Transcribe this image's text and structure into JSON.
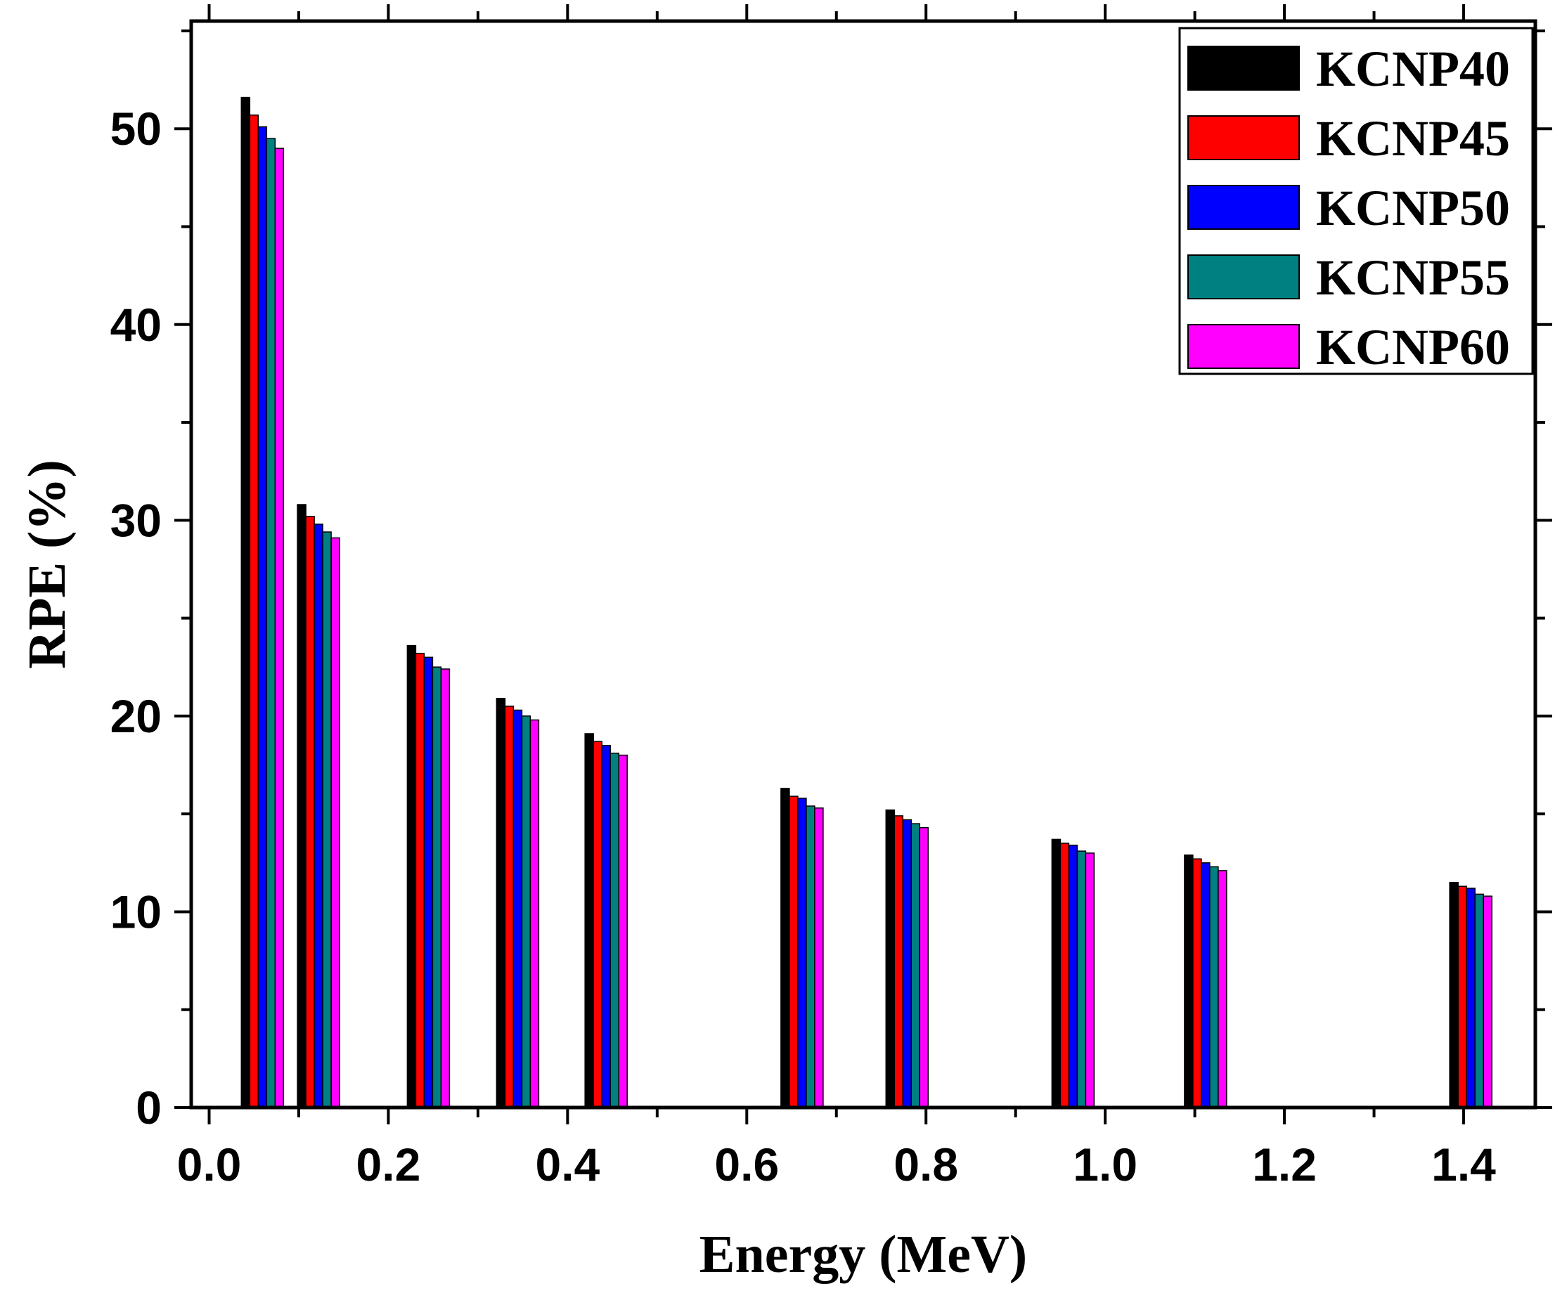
{
  "chart_data": {
    "type": "bar",
    "title": "",
    "xlabel": "Energy (MeV)",
    "ylabel": "RPE (%)",
    "xlim": [
      -0.02,
      1.48
    ],
    "ylim": [
      0,
      55.5
    ],
    "x_ticks": [
      "0.0",
      "0.2",
      "0.4",
      "0.6",
      "0.8",
      "1.0",
      "1.2",
      "1.4"
    ],
    "y_ticks": [
      "0",
      "10",
      "20",
      "30",
      "40",
      "50"
    ],
    "legend_position": "top-right",
    "x": [
      0.0595,
      0.1221,
      0.2447,
      0.3443,
      0.443,
      0.6617,
      0.7789,
      0.9641,
      1.112,
      1.408
    ],
    "series": [
      {
        "name": "KCNP40",
        "color": "#000000",
        "values": [
          51.6,
          30.8,
          23.6,
          20.9,
          19.1,
          16.3,
          15.2,
          13.7,
          12.9,
          11.5
        ]
      },
      {
        "name": "KCNP45",
        "color": "#ff0000",
        "values": [
          50.7,
          30.2,
          23.2,
          20.5,
          18.7,
          15.9,
          14.9,
          13.5,
          12.7,
          11.3
        ]
      },
      {
        "name": "KCNP50",
        "color": "#0000ff",
        "values": [
          50.1,
          29.8,
          23.0,
          20.3,
          18.5,
          15.8,
          14.7,
          13.4,
          12.5,
          11.2
        ]
      },
      {
        "name": "KCNP55",
        "color": "#008080",
        "values": [
          49.5,
          29.4,
          22.5,
          20.0,
          18.1,
          15.4,
          14.5,
          13.1,
          12.3,
          10.9
        ]
      },
      {
        "name": "KCNP60",
        "color": "#ff00ff",
        "values": [
          49.0,
          29.1,
          22.4,
          19.8,
          18.0,
          15.3,
          14.3,
          13.0,
          12.1,
          10.8
        ]
      }
    ]
  }
}
